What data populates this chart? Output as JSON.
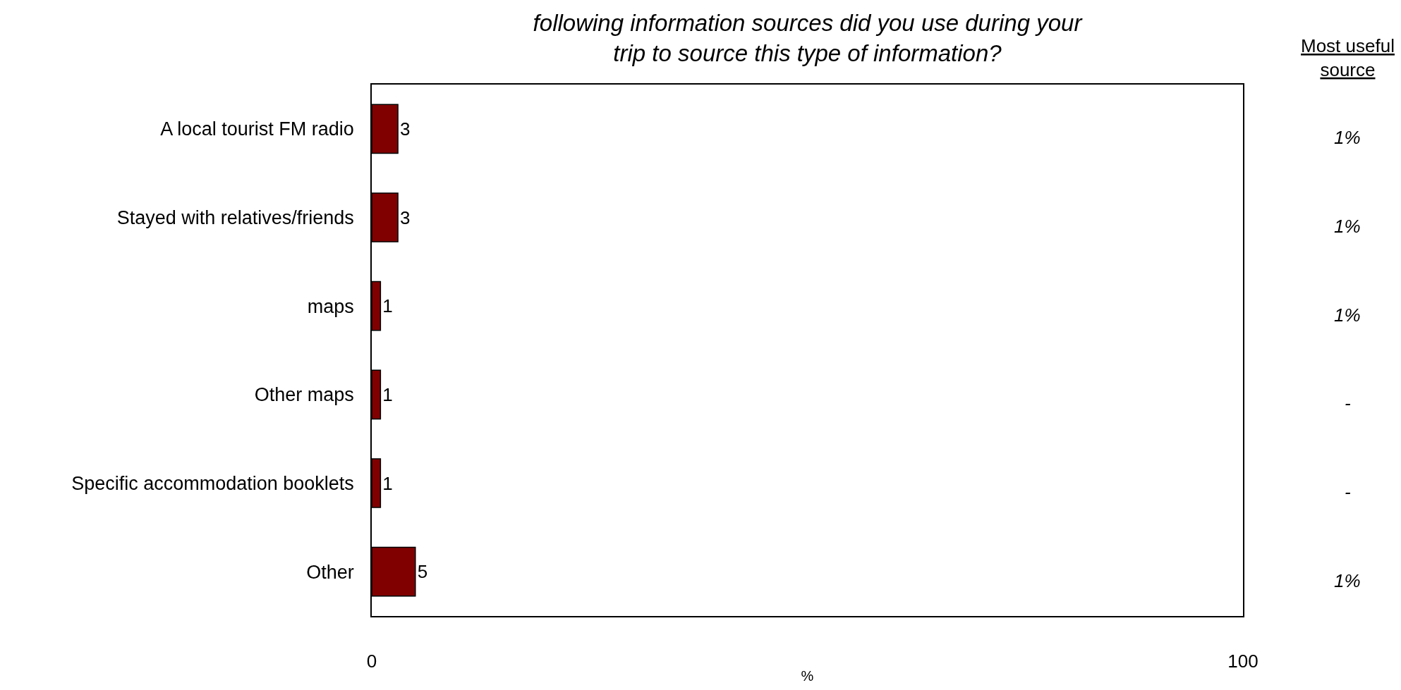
{
  "chart_data": {
    "type": "bar",
    "orientation": "horizontal",
    "title": "following information sources did you use during your trip to source this type of information?",
    "categories": [
      "A local tourist FM radio",
      "Stayed with relatives/friends",
      "maps",
      "Other maps",
      "Specific accommodation booklets",
      "Other"
    ],
    "values": [
      3,
      3,
      1,
      1,
      1,
      5
    ],
    "color": "#800000",
    "xlim": [
      0,
      100
    ],
    "xticks": [
      0,
      100
    ],
    "xlabel": "%",
    "data_labels": true,
    "annotations": [
      "Most useful source",
      "1%",
      "1%",
      "1%",
      "-",
      "-",
      "1%"
    ]
  }
}
